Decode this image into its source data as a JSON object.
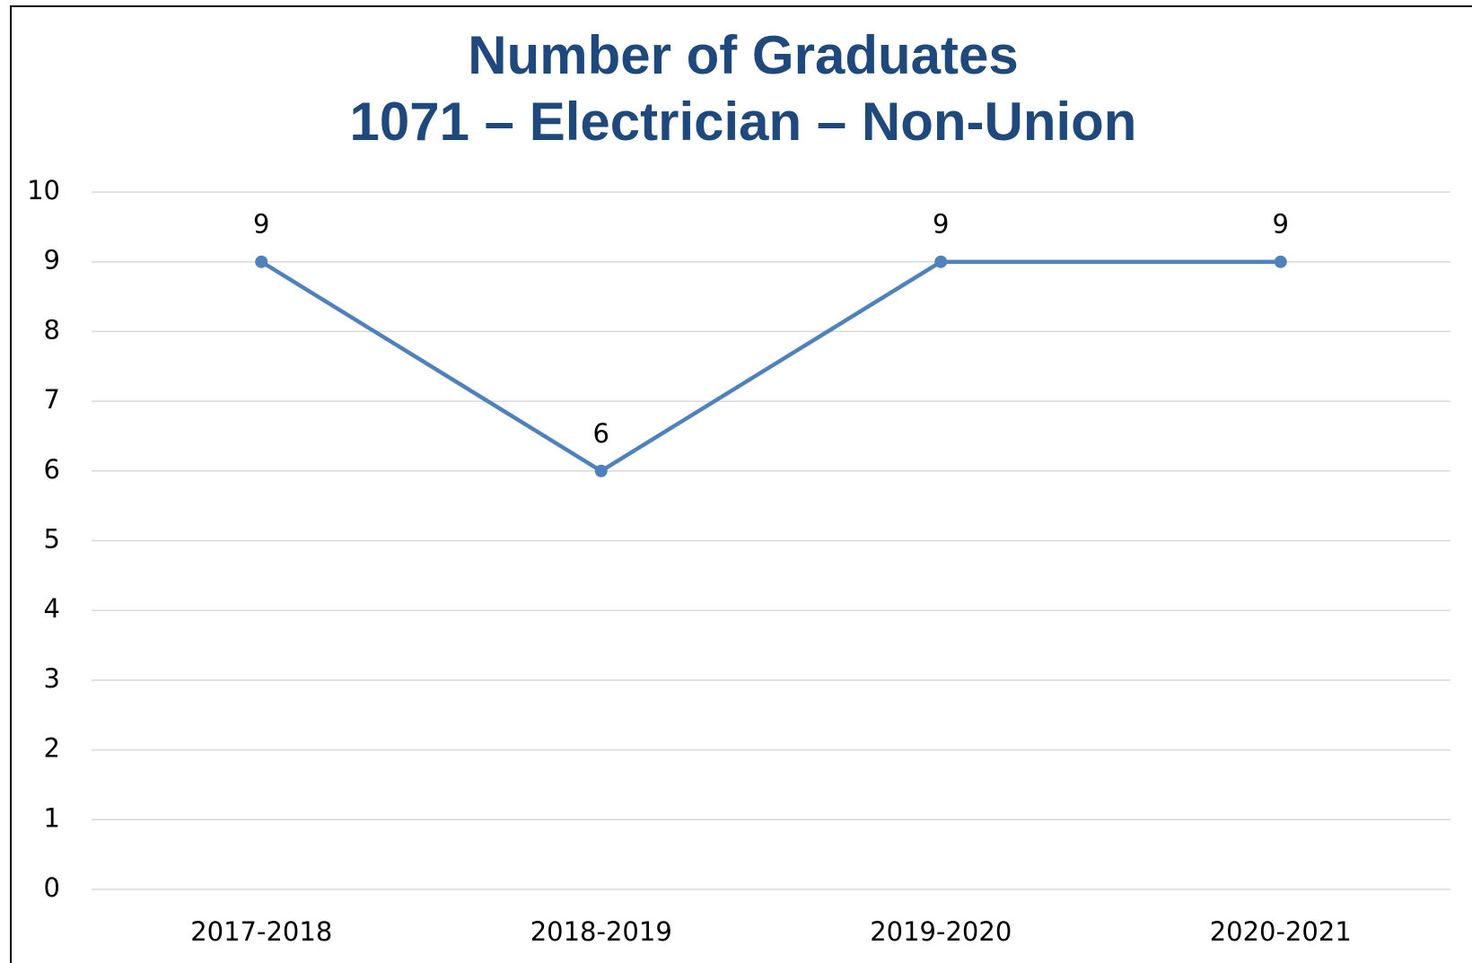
{
  "chart_data": {
    "type": "line",
    "title": "Number of Graduates",
    "subtitle": "1071 – Electrician – Non-Union",
    "categories": [
      "2017-2018",
      "2018-2019",
      "2019-2020",
      "2020-2021"
    ],
    "series": [
      {
        "name": "Number of Graduates",
        "color": "#4f81bd",
        "values": [
          9,
          6,
          9,
          9
        ]
      }
    ],
    "ylim": [
      0,
      10
    ],
    "yticks": [
      0,
      1,
      2,
      3,
      4,
      5,
      6,
      7,
      8,
      9,
      10
    ],
    "grid": true
  }
}
